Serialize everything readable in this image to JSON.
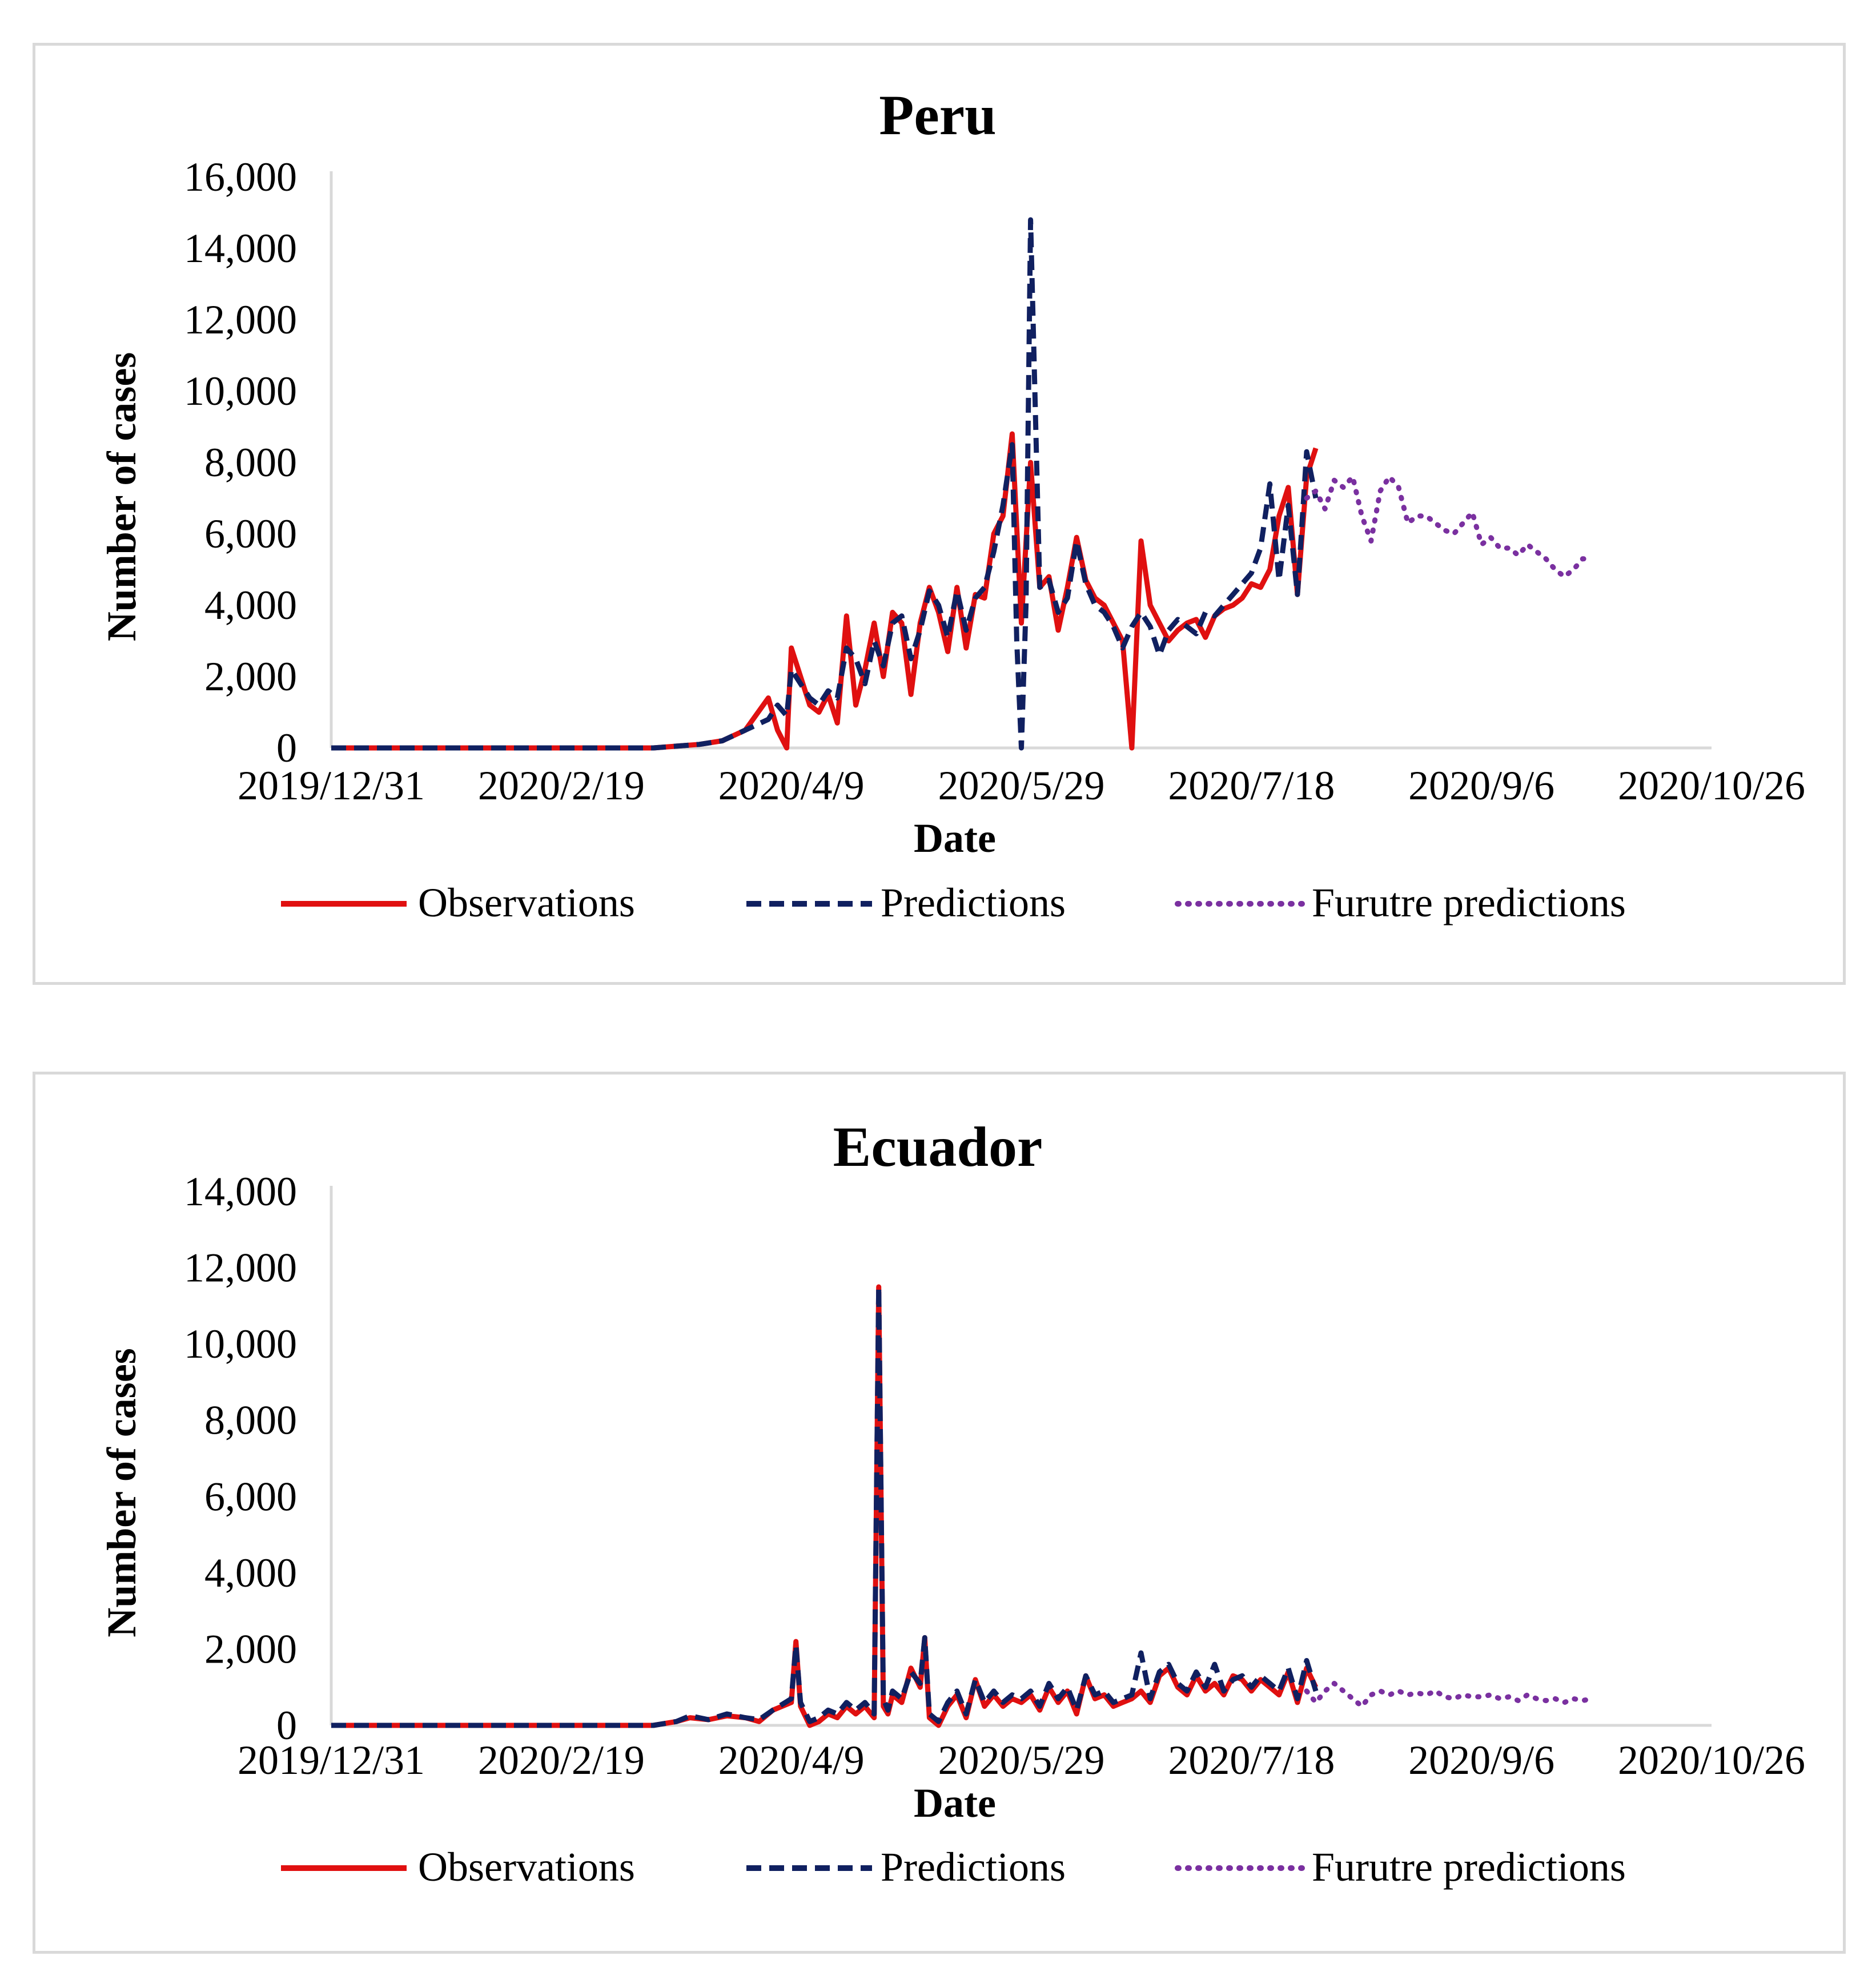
{
  "colors": {
    "observations": "#e01010",
    "predictions": "#102060",
    "future": "#7a30a0",
    "axis": "#d9d9d9"
  },
  "legend": {
    "observations": "Observations",
    "predictions": "Predictions",
    "future": "Furutre predictions"
  },
  "chart_data": [
    {
      "type": "line",
      "title": "Peru",
      "xlabel": "Date",
      "ylabel": "Number of cases",
      "ylim": [
        0,
        16000
      ],
      "yticks": [
        0,
        2000,
        4000,
        6000,
        8000,
        10000,
        12000,
        14000,
        16000
      ],
      "ytick_labels": [
        "0",
        "2,000",
        "4,000",
        "6,000",
        "8,000",
        "10,000",
        "12,000",
        "14,000",
        "16,000"
      ],
      "xlim": [
        0,
        300
      ],
      "xticks": [
        0,
        50,
        100,
        150,
        200,
        250,
        300
      ],
      "xtick_labels": [
        "2019/12/31",
        "2020/2/19",
        "2020/4/9",
        "2020/5/29",
        "2020/7/18",
        "2020/9/6",
        "2020/10/26"
      ],
      "x_unit": "days since 2019/12/31",
      "series": [
        {
          "name": "Observations",
          "x": [
            0,
            20,
            40,
            60,
            70,
            75,
            80,
            85,
            90,
            95,
            97,
            99,
            100,
            104,
            106,
            108,
            110,
            112,
            114,
            116,
            118,
            120,
            122,
            124,
            126,
            128,
            130,
            132,
            134,
            136,
            138,
            140,
            142,
            144,
            146,
            148,
            150,
            152,
            154,
            156,
            158,
            160,
            162,
            164,
            166,
            168,
            170,
            172,
            174,
            176,
            178,
            180,
            182,
            184,
            186,
            188,
            190,
            192,
            194,
            196,
            198,
            200,
            202,
            204,
            206,
            208,
            210,
            212,
            214
          ],
          "values": [
            0,
            0,
            0,
            0,
            0,
            50,
            100,
            200,
            500,
            1400,
            500,
            0,
            2800,
            1200,
            1000,
            1500,
            700,
            3700,
            1200,
            2200,
            3500,
            2000,
            3800,
            3500,
            1500,
            3500,
            4500,
            3800,
            2700,
            4500,
            2800,
            4300,
            4200,
            6000,
            6500,
            8800,
            3500,
            8000,
            4500,
            4800,
            3300,
            4500,
            5900,
            4700,
            4200,
            4000,
            3500,
            3000,
            0,
            5800,
            4000,
            3500,
            3000,
            3300,
            3500,
            3600,
            3100,
            3700,
            3900,
            4000,
            4200,
            4600,
            4500,
            5000,
            6500,
            7300,
            4300,
            7600,
            8400
          ]
        },
        {
          "name": "Predictions",
          "x": [
            0,
            20,
            40,
            60,
            70,
            75,
            80,
            85,
            90,
            95,
            97,
            99,
            100,
            104,
            106,
            108,
            110,
            112,
            114,
            116,
            118,
            120,
            122,
            124,
            126,
            128,
            130,
            132,
            134,
            136,
            138,
            140,
            142,
            144,
            146,
            148,
            149,
            150,
            151,
            152,
            154,
            156,
            158,
            160,
            162,
            164,
            166,
            168,
            170,
            172,
            174,
            176,
            178,
            180,
            182,
            184,
            186,
            188,
            190,
            192,
            194,
            196,
            198,
            200,
            202,
            204,
            206,
            208,
            210,
            212,
            214
          ],
          "values": [
            0,
            0,
            0,
            0,
            0,
            50,
            100,
            200,
            500,
            800,
            1200,
            900,
            2200,
            1400,
            1200,
            1600,
            1400,
            2800,
            2500,
            1800,
            3000,
            2300,
            3500,
            3700,
            2500,
            3300,
            4400,
            4000,
            3100,
            4400,
            3300,
            4200,
            4500,
            5500,
            6800,
            8500,
            3000,
            0,
            4000,
            14800,
            4500,
            4700,
            3800,
            4200,
            5800,
            4600,
            4000,
            3800,
            3400,
            2800,
            3400,
            3800,
            3400,
            2600,
            3300,
            3600,
            3400,
            3200,
            3800,
            3700,
            4000,
            4300,
            4600,
            4900,
            5600,
            7400,
            4700,
            6800,
            4300,
            8300,
            7000
          ]
        },
        {
          "name": "Furutre predictions",
          "x": [
            212,
            214,
            216,
            218,
            220,
            222,
            224,
            226,
            228,
            230,
            232,
            234,
            236,
            238,
            240,
            242,
            244,
            246,
            248,
            250,
            252,
            254,
            256,
            258,
            260,
            262,
            264,
            266,
            268,
            270,
            272,
            274
          ],
          "values": [
            7000,
            7200,
            6700,
            7500,
            7300,
            7600,
            6500,
            5800,
            7200,
            7600,
            7300,
            6300,
            6500,
            6500,
            6300,
            6100,
            6000,
            6300,
            6600,
            5700,
            5900,
            5600,
            5600,
            5400,
            5700,
            5500,
            5300,
            5000,
            4800,
            5000,
            5300,
            5300
          ]
        }
      ]
    },
    {
      "type": "line",
      "title": "Ecuador",
      "xlabel": "Date",
      "ylabel": "Number of cases",
      "ylim": [
        0,
        14000
      ],
      "yticks": [
        0,
        2000,
        4000,
        6000,
        8000,
        10000,
        12000,
        14000
      ],
      "ytick_labels": [
        "0",
        "2,000",
        "4,000",
        "6,000",
        "8,000",
        "10,000",
        "12,000",
        "14,000"
      ],
      "xlim": [
        0,
        300
      ],
      "xticks": [
        0,
        50,
        100,
        150,
        200,
        250,
        300
      ],
      "xtick_labels": [
        "2019/12/31",
        "2020/2/19",
        "2020/4/9",
        "2020/5/29",
        "2020/7/18",
        "2020/9/6",
        "2020/10/26"
      ],
      "x_unit": "days since 2019/12/31",
      "series": [
        {
          "name": "Observations",
          "x": [
            0,
            20,
            40,
            60,
            70,
            75,
            78,
            82,
            86,
            90,
            93,
            96,
            100,
            101,
            102,
            104,
            106,
            108,
            110,
            112,
            114,
            116,
            118,
            119,
            120,
            121,
            122,
            124,
            126,
            128,
            129,
            130,
            132,
            134,
            136,
            138,
            140,
            142,
            144,
            146,
            148,
            150,
            152,
            154,
            156,
            158,
            160,
            162,
            164,
            166,
            168,
            170,
            172,
            174,
            176,
            178,
            180,
            182,
            184,
            186,
            188,
            190,
            192,
            194,
            196,
            198,
            200,
            202,
            204,
            206,
            208,
            210,
            212,
            214
          ],
          "values": [
            0,
            0,
            0,
            0,
            0,
            100,
            200,
            150,
            250,
            200,
            100,
            400,
            600,
            2200,
            500,
            0,
            100,
            300,
            200,
            500,
            300,
            500,
            200,
            11500,
            500,
            300,
            800,
            600,
            1500,
            1000,
            2300,
            200,
            0,
            500,
            800,
            200,
            1200,
            500,
            800,
            500,
            700,
            600,
            800,
            400,
            1000,
            600,
            900,
            300,
            1300,
            700,
            800,
            500,
            600,
            700,
            900,
            600,
            1300,
            1500,
            1000,
            800,
            1300,
            900,
            1100,
            800,
            1300,
            1200,
            900,
            1200,
            1000,
            800,
            1400,
            600,
            1500,
            1000
          ]
        },
        {
          "name": "Predictions",
          "x": [
            0,
            20,
            40,
            60,
            70,
            75,
            78,
            82,
            86,
            90,
            93,
            96,
            100,
            101,
            102,
            104,
            106,
            108,
            110,
            112,
            114,
            116,
            118,
            119,
            120,
            121,
            122,
            124,
            126,
            128,
            129,
            130,
            132,
            134,
            136,
            138,
            140,
            142,
            144,
            146,
            148,
            150,
            152,
            154,
            156,
            158,
            160,
            162,
            164,
            166,
            168,
            170,
            172,
            174,
            176,
            178,
            180,
            182,
            184,
            186,
            188,
            190,
            192,
            194,
            196,
            198,
            200,
            202,
            204,
            206,
            208,
            210,
            212,
            214
          ],
          "values": [
            0,
            0,
            0,
            0,
            0,
            100,
            250,
            150,
            300,
            200,
            150,
            400,
            700,
            2100,
            600,
            100,
            200,
            400,
            300,
            600,
            400,
            600,
            300,
            11500,
            700,
            400,
            900,
            700,
            1400,
            1100,
            2300,
            300,
            100,
            600,
            900,
            300,
            1200,
            600,
            900,
            600,
            800,
            700,
            900,
            500,
            1100,
            700,
            1000,
            400,
            1300,
            800,
            900,
            600,
            700,
            800,
            1900,
            700,
            1400,
            1600,
            1100,
            900,
            1400,
            1000,
            1600,
            900,
            1200,
            1300,
            1000,
            1300,
            1100,
            900,
            1500,
            700,
            1700,
            900
          ]
        },
        {
          "name": "Furutre predictions",
          "x": [
            212,
            214,
            216,
            218,
            220,
            222,
            224,
            226,
            228,
            230,
            232,
            234,
            236,
            238,
            240,
            242,
            244,
            246,
            248,
            250,
            252,
            254,
            256,
            258,
            260,
            262,
            264,
            266,
            268,
            270,
            272,
            274
          ],
          "values": [
            900,
            600,
            900,
            1100,
            900,
            700,
            500,
            800,
            900,
            800,
            900,
            800,
            850,
            800,
            900,
            750,
            700,
            800,
            750,
            750,
            800,
            700,
            750,
            650,
            800,
            700,
            650,
            700,
            600,
            700,
            650,
            700
          ]
        }
      ]
    }
  ]
}
